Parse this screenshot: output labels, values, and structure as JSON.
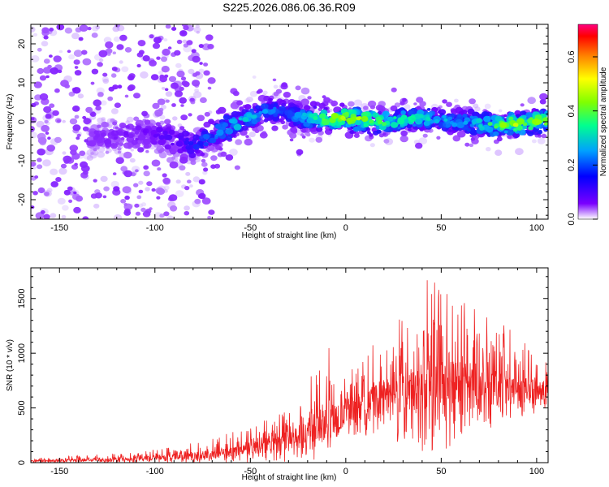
{
  "chart_data": [
    {
      "type": "heatmap",
      "panel": "spectrogram",
      "title": "S225.2026.086.06.36.R09",
      "xlabel": "Height of straight line (km)",
      "ylabel": "Frequency (Hz)",
      "xlim": [
        -165,
        106
      ],
      "ylim": [
        -25,
        25
      ],
      "xticks": [
        -150,
        -100,
        -50,
        0,
        50,
        100
      ],
      "yticks": [
        -20,
        -10,
        0,
        10,
        20
      ],
      "colorbar": {
        "label": "Normalized spectral amplitude",
        "range": [
          0,
          0.72
        ],
        "ticks": [
          "0.0",
          "0.2",
          "0.4",
          "0.6"
        ]
      },
      "description_of_signal": "scattered energy at high frequencies for low heights, converging to a band near 0 Hz above about -65 km",
      "band_center_hz": [
        {
          "x": -130,
          "y": -4
        },
        {
          "x": -100,
          "y": -3
        },
        {
          "x": -80,
          "y": -6
        },
        {
          "x": -60,
          "y": -1
        },
        {
          "x": -40,
          "y": 3
        },
        {
          "x": -20,
          "y": 1
        },
        {
          "x": 0,
          "y": 1
        },
        {
          "x": 20,
          "y": 0
        },
        {
          "x": 40,
          "y": 1
        },
        {
          "x": 60,
          "y": 0
        },
        {
          "x": 80,
          "y": -1
        },
        {
          "x": 100,
          "y": 0
        }
      ],
      "band_peak_amplitude": [
        {
          "x": -130,
          "y": 0.12
        },
        {
          "x": -90,
          "y": 0.18
        },
        {
          "x": -55,
          "y": 0.35
        },
        {
          "x": -30,
          "y": 0.25
        },
        {
          "x": -10,
          "y": 0.45
        },
        {
          "x": 0,
          "y": 0.5
        },
        {
          "x": 30,
          "y": 0.38
        },
        {
          "x": 60,
          "y": 0.3
        },
        {
          "x": 90,
          "y": 0.5
        },
        {
          "x": 100,
          "y": 0.45
        }
      ]
    },
    {
      "type": "line",
      "panel": "snr",
      "title": "",
      "xlabel": "Height of straight line (km)",
      "ylabel": "SNR (10 * v/v)",
      "xlim": [
        -165,
        106
      ],
      "ylim": [
        0,
        1780
      ],
      "xticks": [
        -150,
        -100,
        -50,
        0,
        50,
        100
      ],
      "yticks": [
        0,
        500,
        1000,
        1500
      ],
      "series": [
        {
          "name": "SNR",
          "color": "#ee2222",
          "envelope_x": [
            -165,
            -150,
            -130,
            -110,
            -90,
            -70,
            -60,
            -50,
            -40,
            -30,
            -20,
            -15,
            -10,
            0,
            10,
            20,
            30,
            40,
            45,
            50,
            60,
            70,
            80,
            90,
            100,
            106
          ],
          "envelope_max": [
            40,
            55,
            75,
            100,
            150,
            220,
            280,
            330,
            420,
            520,
            760,
            900,
            1080,
            800,
            1000,
            1180,
            1420,
            1560,
            1780,
            1600,
            1480,
            1520,
            1330,
            1150,
            1000,
            950
          ],
          "typical": [
            15,
            20,
            25,
            35,
            50,
            75,
            100,
            130,
            170,
            210,
            260,
            290,
            340,
            450,
            520,
            600,
            650,
            680,
            700,
            700,
            690,
            680,
            670,
            660,
            660,
            660
          ],
          "envelope_min": [
            0,
            0,
            0,
            0,
            0,
            0,
            0,
            0,
            0,
            0,
            0,
            0,
            80,
            250,
            250,
            200,
            150,
            100,
            100,
            100,
            150,
            250,
            350,
            400,
            450,
            480
          ]
        }
      ]
    }
  ]
}
